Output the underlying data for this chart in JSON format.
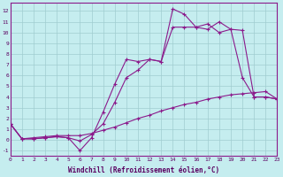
{
  "xlabel": "Windchill (Refroidissement éolien,°C)",
  "xlim": [
    0,
    23
  ],
  "ylim": [
    -1.5,
    12.8
  ],
  "yticks": [
    -1,
    0,
    1,
    2,
    3,
    4,
    5,
    6,
    7,
    8,
    9,
    10,
    11,
    12
  ],
  "xticks": [
    0,
    1,
    2,
    3,
    4,
    5,
    6,
    7,
    8,
    9,
    10,
    11,
    12,
    13,
    14,
    15,
    16,
    17,
    18,
    19,
    20,
    21,
    22,
    23
  ],
  "bg_color": "#c5edef",
  "line_color": "#8b1a8b",
  "grid_color": "#a0cdd0",
  "line1_x": [
    0,
    1,
    2,
    3,
    4,
    5,
    6,
    7,
    8,
    9,
    10,
    11,
    12,
    13,
    14,
    15,
    16,
    17,
    18,
    19,
    20,
    21,
    22,
    23
  ],
  "line1_y": [
    1.5,
    0.1,
    0.1,
    0.2,
    0.3,
    0.2,
    -1.0,
    0.2,
    2.6,
    5.2,
    7.5,
    7.3,
    7.5,
    7.3,
    12.2,
    11.7,
    10.5,
    10.3,
    11.0,
    10.3,
    5.8,
    4.0,
    4.0,
    3.8
  ],
  "line2_x": [
    0,
    1,
    2,
    3,
    4,
    5,
    6,
    7,
    8,
    9,
    10,
    11,
    12,
    13,
    14,
    15,
    16,
    17,
    18,
    19,
    20,
    21,
    22,
    23
  ],
  "line2_y": [
    1.5,
    0.1,
    0.1,
    0.2,
    0.3,
    0.2,
    -0.1,
    0.5,
    1.5,
    3.5,
    5.8,
    6.5,
    7.5,
    7.3,
    10.5,
    10.5,
    10.5,
    10.8,
    10.0,
    10.3,
    10.2,
    4.0,
    4.0,
    3.8
  ],
  "line3_x": [
    0,
    1,
    2,
    3,
    4,
    5,
    6,
    7,
    8,
    9,
    10,
    11,
    12,
    13,
    14,
    15,
    16,
    17,
    18,
    19,
    20,
    21,
    22,
    23
  ],
  "line3_y": [
    1.5,
    0.1,
    0.2,
    0.3,
    0.4,
    0.4,
    0.4,
    0.6,
    0.9,
    1.2,
    1.6,
    2.0,
    2.3,
    2.7,
    3.0,
    3.3,
    3.5,
    3.8,
    4.0,
    4.2,
    4.3,
    4.4,
    4.5,
    3.8
  ],
  "tick_color": "#5a0060",
  "xlabel_color": "#5a0060",
  "font_name": "monospace",
  "tick_fontsize": 4.5,
  "xlabel_fontsize": 5.5
}
